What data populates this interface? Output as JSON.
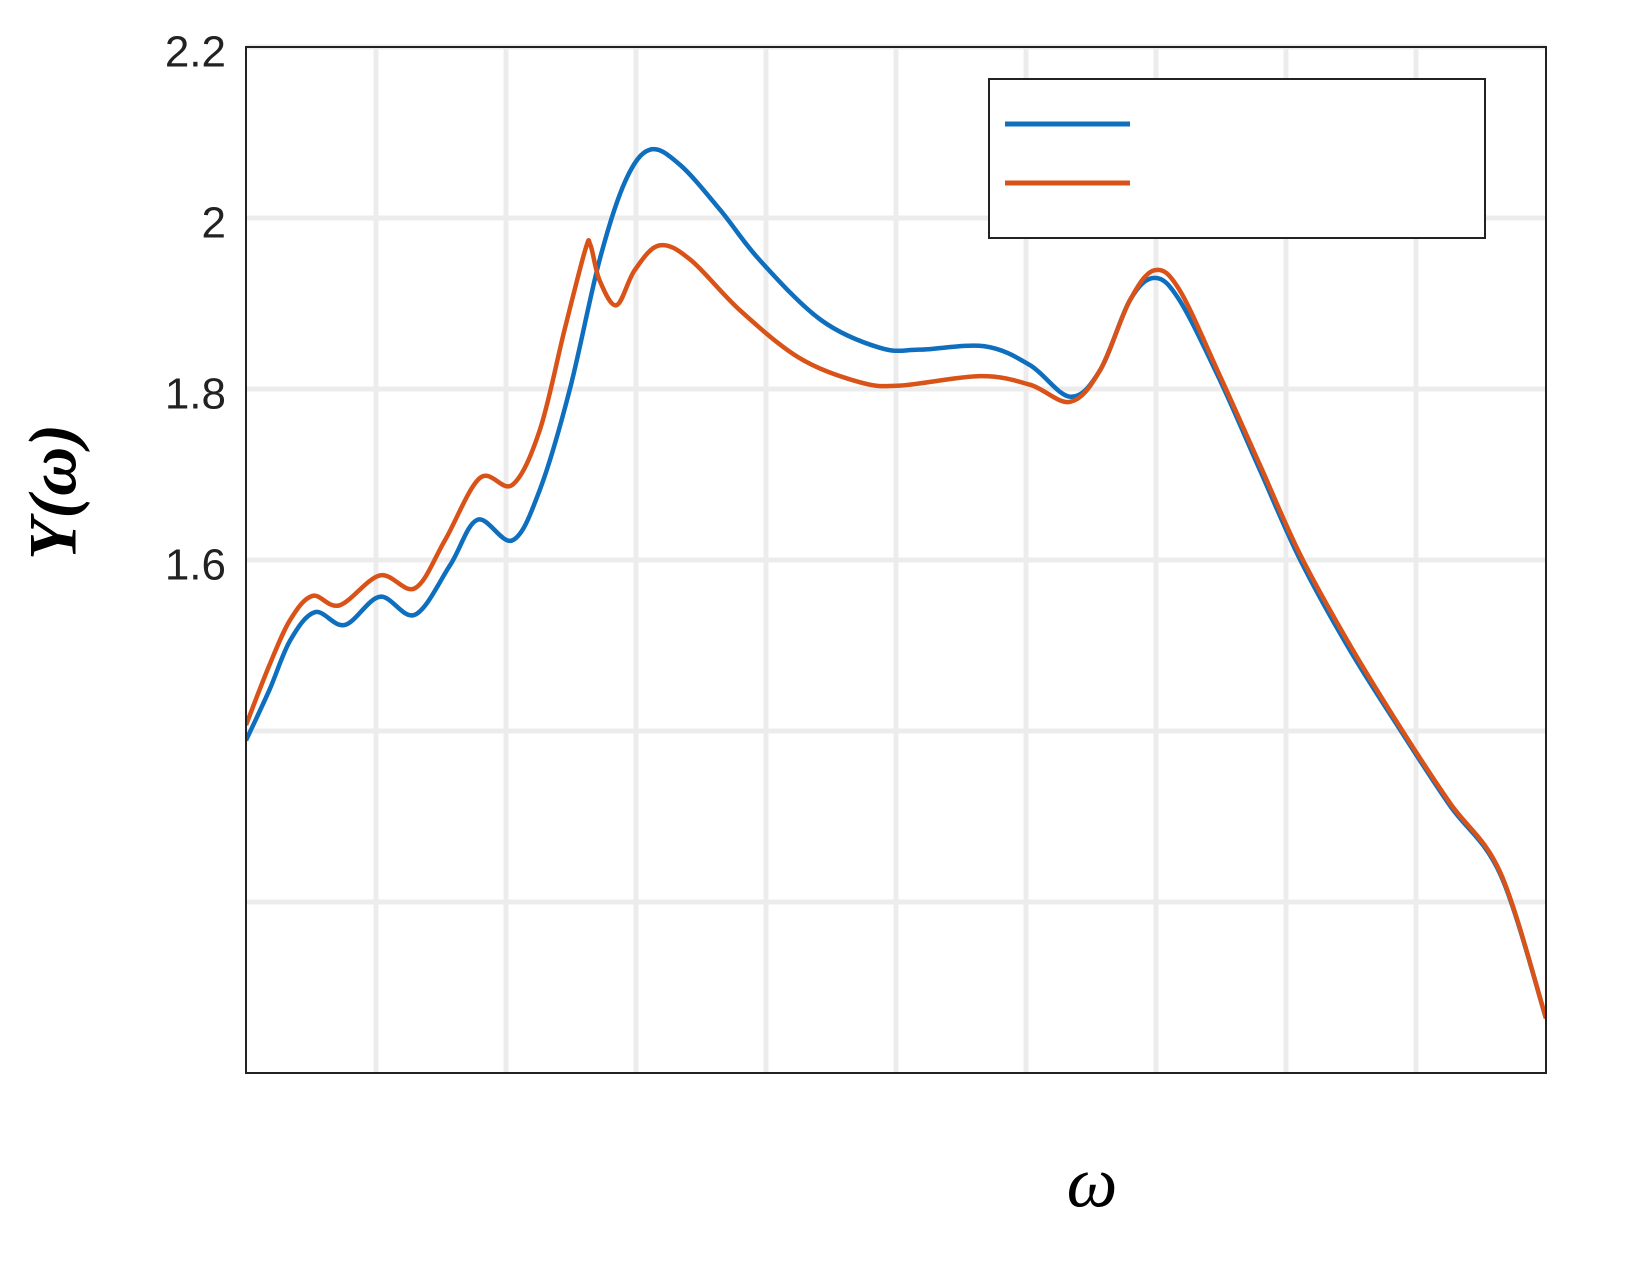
{
  "chart_data": {
    "type": "line",
    "y_label": "Y(ω)",
    "x_label": "ω",
    "xlim": [
      0,
      10
    ],
    "ylim": [
      1.0,
      2.2
    ],
    "xticks": [
      {
        "value": 1,
        "label": null
      },
      {
        "value": 2,
        "label": null
      },
      {
        "value": 3,
        "label": null
      },
      {
        "value": 4,
        "label": null
      },
      {
        "value": 5,
        "label": null
      },
      {
        "value": 6,
        "label": null
      },
      {
        "value": 7,
        "label": null
      },
      {
        "value": 8,
        "label": null
      },
      {
        "value": 9,
        "label": null
      }
    ],
    "yticks": [
      {
        "value": 1.2,
        "label": null
      },
      {
        "value": 1.4,
        "label": null
      },
      1.6,
      1.8,
      2,
      2.2
    ],
    "grid": true,
    "legend": "upper right",
    "series": [
      {
        "color": "#0f6fbf",
        "x": [
          0,
          0.18,
          0.34,
          0.53,
          0.76,
          1.03,
          1.3,
          1.57,
          1.78,
          2.05,
          2.26,
          2.49,
          2.72,
          2.92,
          3.11,
          3.34,
          3.65,
          3.95,
          4.42,
          4.88,
          5.18,
          5.68,
          6.03,
          6.34,
          6.57,
          6.8,
          6.99,
          7.18,
          7.49,
          7.8,
          8.11,
          8.49,
          8.88,
          9.26,
          9.65,
          10
        ],
        "values": [
          1.389,
          1.448,
          1.506,
          1.539,
          1.524,
          1.557,
          1.536,
          1.594,
          1.647,
          1.623,
          1.682,
          1.799,
          1.951,
          2.044,
          2.08,
          2.062,
          2.009,
          1.951,
          1.881,
          1.848,
          1.846,
          1.85,
          1.828,
          1.791,
          1.822,
          1.904,
          1.93,
          1.904,
          1.811,
          1.705,
          1.6,
          1.495,
          1.401,
          1.313,
          1.232,
          1.064
        ]
      },
      {
        "color": "#d95319",
        "x": [
          0,
          0.18,
          0.34,
          0.51,
          0.72,
          1.03,
          1.3,
          1.53,
          1.8,
          2.05,
          2.26,
          2.45,
          2.61,
          2.65,
          2.72,
          2.85,
          2.99,
          3.18,
          3.42,
          3.8,
          4.26,
          4.72,
          5.03,
          5.65,
          6.03,
          6.34,
          6.57,
          6.8,
          6.99,
          7.18,
          7.49,
          7.8,
          8.11,
          8.49,
          8.88,
          9.26,
          9.65,
          10
        ],
        "values": [
          1.407,
          1.477,
          1.53,
          1.558,
          1.547,
          1.582,
          1.567,
          1.623,
          1.696,
          1.688,
          1.752,
          1.869,
          1.963,
          1.968,
          1.927,
          1.898,
          1.939,
          1.968,
          1.951,
          1.892,
          1.836,
          1.808,
          1.804,
          1.815,
          1.805,
          1.785,
          1.822,
          1.904,
          1.939,
          1.916,
          1.816,
          1.711,
          1.606,
          1.501,
          1.404,
          1.316,
          1.234,
          1.064
        ]
      }
    ]
  }
}
